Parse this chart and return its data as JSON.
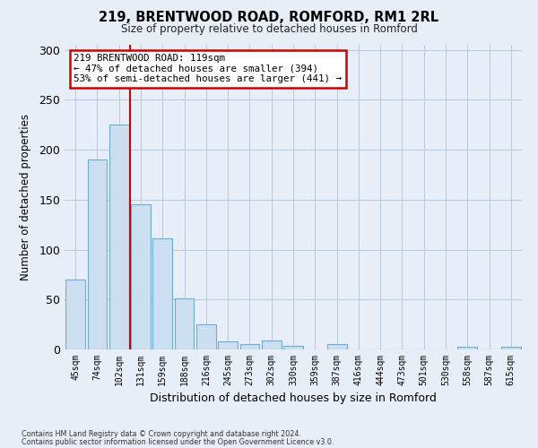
{
  "title": "219, BRENTWOOD ROAD, ROMFORD, RM1 2RL",
  "subtitle": "Size of property relative to detached houses in Romford",
  "xlabel": "Distribution of detached houses by size in Romford",
  "ylabel": "Number of detached properties",
  "bar_labels": [
    "45sqm",
    "74sqm",
    "102sqm",
    "131sqm",
    "159sqm",
    "188sqm",
    "216sqm",
    "245sqm",
    "273sqm",
    "302sqm",
    "330sqm",
    "359sqm",
    "387sqm",
    "416sqm",
    "444sqm",
    "473sqm",
    "501sqm",
    "530sqm",
    "558sqm",
    "587sqm",
    "615sqm"
  ],
  "bar_values": [
    70,
    190,
    225,
    145,
    111,
    51,
    25,
    8,
    5,
    9,
    4,
    0,
    5,
    0,
    0,
    0,
    0,
    0,
    3,
    0,
    3
  ],
  "bar_color": "#ccdff0",
  "bar_edge_color": "#6aaed6",
  "vline_color": "#cc0000",
  "annotation_title": "219 BRENTWOOD ROAD: 119sqm",
  "annotation_line1": "← 47% of detached houses are smaller (394)",
  "annotation_line2": "53% of semi-detached houses are larger (441) →",
  "annotation_box_color": "#ffffff",
  "annotation_border_color": "#cc0000",
  "ylim": [
    0,
    305
  ],
  "yticks": [
    0,
    50,
    100,
    150,
    200,
    250,
    300
  ],
  "footer1": "Contains HM Land Registry data © Crown copyright and database right 2024.",
  "footer2": "Contains public sector information licensed under the Open Government Licence v3.0.",
  "bg_color": "#e8eef7",
  "plot_bg_color": "#e8eef7"
}
